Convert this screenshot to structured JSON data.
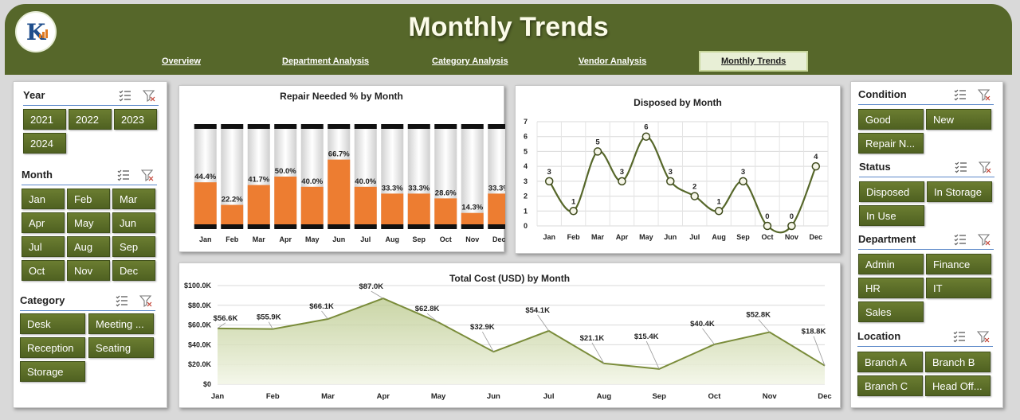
{
  "header": {
    "title": "Monthly Trends",
    "logo_text": "K",
    "nav": [
      {
        "label": "Overview",
        "x": 0
      },
      {
        "label": "Department Analysis",
        "x": 1
      },
      {
        "label": "Category Analysis",
        "x": 2
      },
      {
        "label": "Vendor Analysis",
        "x": 3
      },
      {
        "label": "Monthly Trends",
        "x": 4,
        "active": true
      }
    ]
  },
  "left_slicers": {
    "year": {
      "title": "Year",
      "items": [
        "2021",
        "2022",
        "2023",
        "2024"
      ]
    },
    "month": {
      "title": "Month",
      "items": [
        "Jan",
        "Feb",
        "Mar",
        "Apr",
        "May",
        "Jun",
        "Jul",
        "Aug",
        "Sep",
        "Oct",
        "Nov",
        "Dec"
      ]
    },
    "category": {
      "title": "Category",
      "items": [
        "Desk",
        "Meeting ...",
        "Reception",
        "Seating",
        "Storage"
      ]
    }
  },
  "right_slicers": {
    "condition": {
      "title": "Condition",
      "items": [
        "Good",
        "New",
        "Repair N..."
      ]
    },
    "status": {
      "title": "Status",
      "items": [
        "Disposed",
        "In Storage",
        "In Use"
      ]
    },
    "department": {
      "title": "Department",
      "items": [
        "Admin",
        "Finance",
        "HR",
        "IT",
        "Sales"
      ]
    },
    "location": {
      "title": "Location",
      "items": [
        "Branch A",
        "Branch B",
        "Branch C",
        "Head Off..."
      ]
    }
  },
  "colors": {
    "accent": "#56672a",
    "button": "#5d6f29",
    "bar": "#ed7d31",
    "line": "#7a8c3a"
  },
  "chart_data": [
    {
      "type": "bar",
      "title": "Repair Needed % by Month",
      "categories": [
        "Jan",
        "Feb",
        "Mar",
        "Apr",
        "May",
        "Jun",
        "Jul",
        "Aug",
        "Sep",
        "Oct",
        "Nov",
        "Dec"
      ],
      "values": [
        44.4,
        22.2,
        41.7,
        50.0,
        40.0,
        66.7,
        40.0,
        33.3,
        33.3,
        28.6,
        14.3,
        33.3
      ],
      "labels": [
        "44.4%",
        "22.2%",
        "41.7%",
        "50.0%",
        "40.0%",
        "66.7%",
        "40.0%",
        "33.3%",
        "33.3%",
        "28.6%",
        "14.3%",
        "33.3%"
      ],
      "ylim": [
        0,
        100
      ]
    },
    {
      "type": "line",
      "title": "Disposed by Month",
      "categories": [
        "Jan",
        "Feb",
        "Mar",
        "Apr",
        "May",
        "Jun",
        "Jul",
        "Aug",
        "Sep",
        "Oct",
        "Nov",
        "Dec"
      ],
      "values": [
        3,
        1,
        5,
        3,
        6,
        3,
        2,
        1,
        3,
        0,
        0,
        4
      ],
      "yticks": [
        "0",
        "1",
        "2",
        "3",
        "4",
        "5",
        "6",
        "7"
      ],
      "ylim": [
        0,
        7
      ],
      "grid": true
    },
    {
      "type": "area",
      "title": "Total Cost (USD) by Month",
      "categories": [
        "Jan",
        "Feb",
        "Mar",
        "Apr",
        "May",
        "Jun",
        "Jul",
        "Aug",
        "Sep",
        "Oct",
        "Nov",
        "Dec"
      ],
      "values": [
        56600,
        55900,
        66100,
        87000,
        62800,
        32900,
        54100,
        21100,
        15400,
        40400,
        52800,
        18800
      ],
      "labels": [
        "$56.6K",
        "$55.9K",
        "$66.1K",
        "$87.0K",
        "$62.8K",
        "$32.9K",
        "$54.1K",
        "$21.1K",
        "$15.4K",
        "$40.4K",
        "$52.8K",
        "$18.8K"
      ],
      "yticks": [
        "$0",
        "$20.0K",
        "$40.0K",
        "$60.0K",
        "$80.0K",
        "$100.0K"
      ],
      "ylim": [
        0,
        100000
      ]
    }
  ]
}
